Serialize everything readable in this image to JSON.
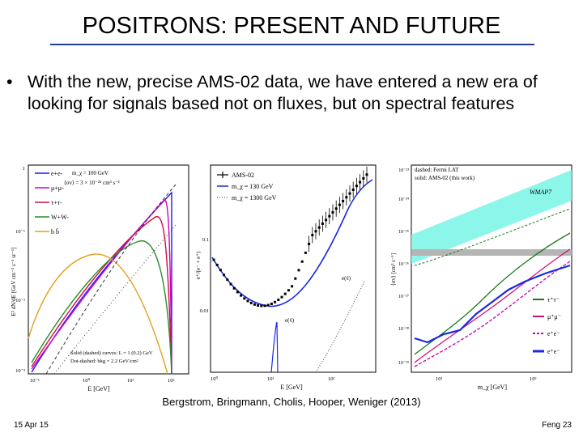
{
  "slide": {
    "title": "POSITRONS: PRESENT AND FUTURE",
    "bullet": "With the new, precise AMS-02 data, we have entered a new era of looking for signals based not on fluxes, but on spectral features",
    "caption": "Bergstrom, Bringmann, Cholis, Hooper, Weniger (2013)",
    "date": "15 Apr 15",
    "footer_right": "Feng 23"
  },
  "panel1": {
    "legend": [
      "e+e-",
      "μ+μ-",
      "τ+τ-",
      "W+W-",
      "b b̄"
    ],
    "colors": [
      "#1a1aff",
      "#cc00cc",
      "#d01040",
      "#2a8a2a",
      "#e0a020"
    ],
    "annot": [
      "m_χ = 100 GeV",
      "⟨σv⟩ = 3 × 10⁻²⁶ cm³ s⁻¹"
    ],
    "note": [
      "Solid (dashed) curves: L = 1 (0.2) GeV",
      "Dot-dashed: bkg = 2.2 GeV/cm²"
    ],
    "ylabel": "E² dN/dE [GeV cm⁻² s⁻¹ sr⁻¹]",
    "xlabel": "E [GeV]",
    "xticks": [
      "10⁻¹",
      "10⁰",
      "10¹",
      "10²"
    ],
    "yticks": [
      "1",
      "10⁻¹",
      "10⁻²",
      "10⁻³"
    ]
  },
  "panel2": {
    "legend": [
      "AMS-02",
      "m_χ = 130 GeV",
      "m_χ = 1300 GeV"
    ],
    "ylabel": "e⁺/(e⁻ + e⁺)",
    "xlabel": "E [GeV]",
    "xticks": [
      "10⁰",
      "10¹",
      "10²"
    ],
    "yticks": [
      "0.1",
      "0.01"
    ],
    "labels": [
      "e(ℓ)",
      "e(ℓ)"
    ]
  },
  "panel3": {
    "legend_top": [
      "dashed: Fermi LAT",
      "solid: AMS-02 (this work)"
    ],
    "wmap": "WMAP7",
    "legend": [
      "τ⁺τ⁻",
      "μ⁺μ⁻",
      "e⁺e⁻",
      "e⁺e⁻"
    ],
    "colors": [
      "#1a7a1a",
      "#d01070",
      "#cc00aa",
      "#1a2ae0"
    ],
    "ylabel": "⟨σv⟩ [cm³ s⁻¹]",
    "xlabel": "m_χ [GeV]",
    "xticks": [
      "10¹",
      "10²"
    ],
    "yticks": [
      "10⁻²³",
      "10⁻²⁴",
      "10⁻²⁵",
      "10⁻²⁶",
      "10⁻²⁷",
      "10⁻²⁸",
      "10⁻²⁹"
    ]
  }
}
